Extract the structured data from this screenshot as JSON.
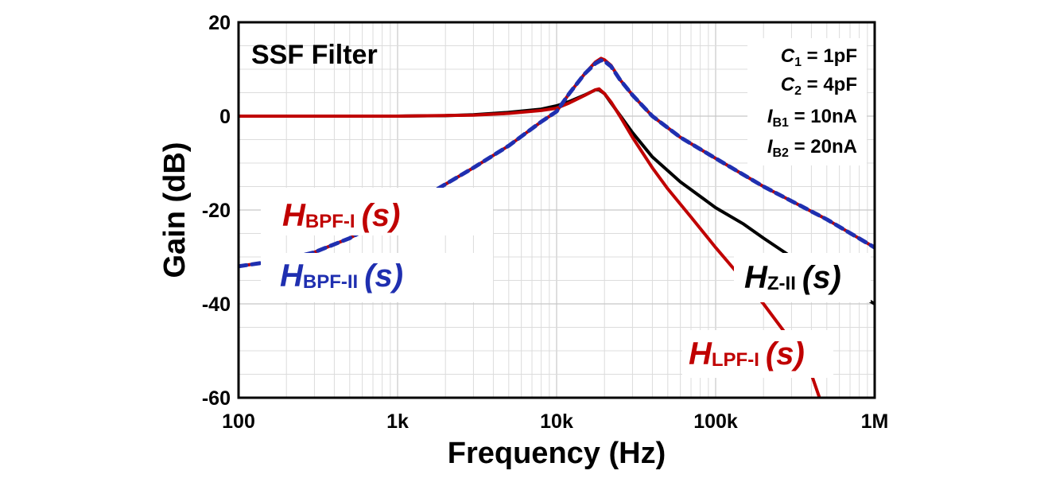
{
  "chart_data": {
    "type": "line",
    "title": "SSF Filter",
    "xlabel": "Frequency (Hz)",
    "ylabel": "Gain (dB)",
    "xscale": "log",
    "xlim": [
      100,
      1000000
    ],
    "ylim": [
      -60,
      20
    ],
    "x_ticks": [
      {
        "value": 100,
        "label": "100"
      },
      {
        "value": 1000,
        "label": "1k"
      },
      {
        "value": 10000,
        "label": "10k"
      },
      {
        "value": 100000,
        "label": "100k"
      },
      {
        "value": 1000000,
        "label": "1M"
      }
    ],
    "y_ticks": [
      {
        "value": 20,
        "label": "20"
      },
      {
        "value": 0,
        "label": "0"
      },
      {
        "value": -20,
        "label": "-20"
      },
      {
        "value": -40,
        "label": "-40"
      },
      {
        "value": -60,
        "label": "-60"
      }
    ],
    "grid": true,
    "parameters": [
      {
        "symbol": "C",
        "sub": "1",
        "value": " = 1pF"
      },
      {
        "symbol": "C",
        "sub": "2",
        "value": " = 4pF"
      },
      {
        "symbol": "I",
        "sub": "B1",
        "value": " = 10nA"
      },
      {
        "symbol": "I",
        "sub": "B2",
        "value": " = 20nA"
      }
    ],
    "series": [
      {
        "name": "H_Z-II(s)",
        "label_main": "H",
        "label_sub": "Z-II",
        "label_arg": "(s)",
        "color": "#000000",
        "dashed": false,
        "points": [
          [
            100,
            0
          ],
          [
            1000,
            0
          ],
          [
            2000,
            0.1
          ],
          [
            3000,
            0.3
          ],
          [
            5000,
            0.8
          ],
          [
            8000,
            1.5
          ],
          [
            10000,
            2.2
          ],
          [
            12000,
            3.1
          ],
          [
            15000,
            4.5
          ],
          [
            17500,
            5.6
          ],
          [
            18500,
            5.6
          ],
          [
            20000,
            4.8
          ],
          [
            22000,
            2.8
          ],
          [
            25000,
            0.2
          ],
          [
            30000,
            -3.5
          ],
          [
            40000,
            -8.7
          ],
          [
            60000,
            -14
          ],
          [
            100000,
            -19.5
          ],
          [
            150000,
            -23
          ],
          [
            200000,
            -26
          ],
          [
            300000,
            -30
          ],
          [
            500000,
            -34
          ],
          [
            700000,
            -37
          ],
          [
            1000000,
            -40
          ]
        ]
      },
      {
        "name": "H_LPF-I(s)",
        "label_main": "H",
        "label_sub": "LPF-I",
        "label_arg": "(s)",
        "color": "#c00000",
        "dashed": false,
        "points": [
          [
            100,
            0
          ],
          [
            1000,
            0
          ],
          [
            3000,
            0.2
          ],
          [
            5000,
            0.6
          ],
          [
            8000,
            1.2
          ],
          [
            10000,
            1.7
          ],
          [
            12000,
            2.8
          ],
          [
            15000,
            4.4
          ],
          [
            17500,
            5.6
          ],
          [
            18500,
            5.8
          ],
          [
            20000,
            4.8
          ],
          [
            22000,
            3
          ],
          [
            25000,
            0
          ],
          [
            30000,
            -4.5
          ],
          [
            40000,
            -11
          ],
          [
            50000,
            -15.5
          ],
          [
            70000,
            -21.5
          ],
          [
            100000,
            -28
          ],
          [
            150000,
            -35
          ],
          [
            200000,
            -40
          ],
          [
            300000,
            -48
          ],
          [
            400000,
            -55
          ],
          [
            450000,
            -60
          ]
        ]
      },
      {
        "name": "H_BPF-I(s)",
        "label_main": "H",
        "label_sub": "BPF-I",
        "label_arg": "(s)",
        "color": "#c00000",
        "dashed": false,
        "points": [
          [
            100,
            -32
          ],
          [
            200,
            -30.5
          ],
          [
            300,
            -29
          ],
          [
            500,
            -26
          ],
          [
            1000,
            -20.5
          ],
          [
            2000,
            -14.5
          ],
          [
            3000,
            -11
          ],
          [
            5000,
            -6.3
          ],
          [
            8000,
            -1.2
          ],
          [
            10000,
            1
          ],
          [
            12000,
            4.8
          ],
          [
            15000,
            9
          ],
          [
            17500,
            11.5
          ],
          [
            19000,
            12.3
          ],
          [
            20000,
            12
          ],
          [
            22000,
            10.8
          ],
          [
            25000,
            7.8
          ],
          [
            30000,
            4.5
          ],
          [
            40000,
            0
          ],
          [
            60000,
            -4.5
          ],
          [
            100000,
            -9
          ],
          [
            200000,
            -15
          ],
          [
            500000,
            -22
          ],
          [
            1000000,
            -28
          ]
        ]
      },
      {
        "name": "H_BPF-II(s)",
        "label_main": "H",
        "label_sub": "BPF-II",
        "label_arg": "(s)",
        "color": "#1f2fb0",
        "dashed": true,
        "points": [
          [
            100,
            -32
          ],
          [
            200,
            -30.5
          ],
          [
            300,
            -29
          ],
          [
            500,
            -26
          ],
          [
            1000,
            -20.5
          ],
          [
            2000,
            -14.5
          ],
          [
            3000,
            -11
          ],
          [
            5000,
            -6.3
          ],
          [
            8000,
            -1.2
          ],
          [
            10000,
            1
          ],
          [
            12000,
            4.8
          ],
          [
            15000,
            9
          ],
          [
            17500,
            11.2
          ],
          [
            19000,
            11.9
          ],
          [
            20000,
            11.7
          ],
          [
            22000,
            10.6
          ],
          [
            25000,
            7.8
          ],
          [
            30000,
            4.5
          ],
          [
            40000,
            0
          ],
          [
            60000,
            -4.5
          ],
          [
            100000,
            -9
          ],
          [
            200000,
            -15
          ],
          [
            500000,
            -22
          ],
          [
            1000000,
            -28
          ]
        ]
      }
    ]
  }
}
